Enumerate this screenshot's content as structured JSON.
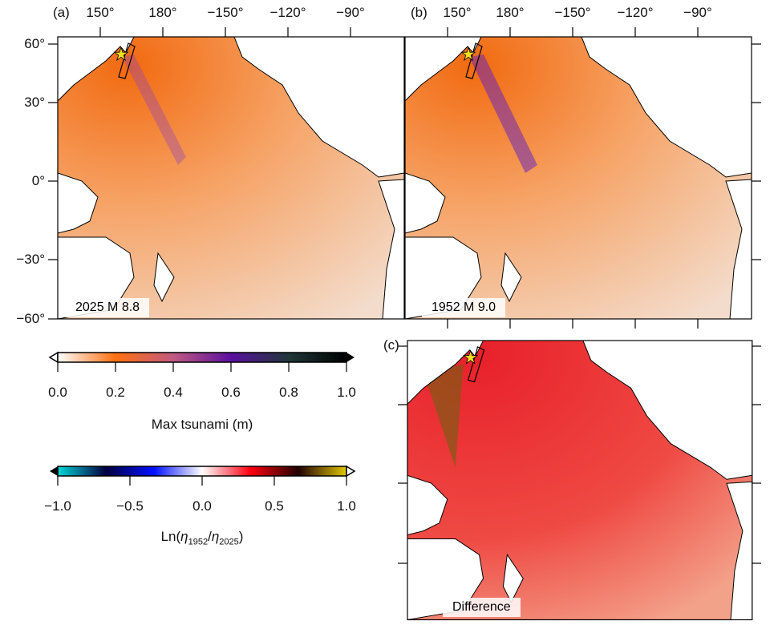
{
  "panels": {
    "a": {
      "label": "(a)",
      "title": "2025 M 8.8"
    },
    "b": {
      "label": "(b)",
      "title": "1952 M 9.0"
    },
    "c": {
      "label": "(c)",
      "title": "Difference"
    }
  },
  "lon_ticks": [
    "150°",
    "180°",
    "−150°",
    "−120°",
    "−90°"
  ],
  "lat_ticks": [
    "60°",
    "30°",
    "0°",
    "−30°",
    "−60°"
  ],
  "colorbar_max": {
    "label": "Max tsunami (m)",
    "ticks": [
      "0.0",
      "0.2",
      "0.4",
      "0.6",
      "0.8",
      "1.0"
    ],
    "colors": [
      "#ffffff",
      "#ff7010",
      "#c05a80",
      "#5a10a0",
      "#203838",
      "#000000"
    ]
  },
  "colorbar_diff": {
    "label_prefix": "Ln(",
    "label_eta1": "η",
    "label_sub1": "1952",
    "label_slash": "/",
    "label_eta2": "η",
    "label_sub2": "2025",
    "label_suffix": ")",
    "ticks": [
      "−1.0",
      "−0.5",
      "0.0",
      "0.5",
      "1.0"
    ],
    "colors": [
      "#00d8d8",
      "#000040",
      "#0010ff",
      "#ffffff",
      "#ff0010",
      "#200000",
      "#e0c800"
    ]
  },
  "markers": {
    "epicenter": "star-icon",
    "epicenter_color": "#f5e020"
  }
}
